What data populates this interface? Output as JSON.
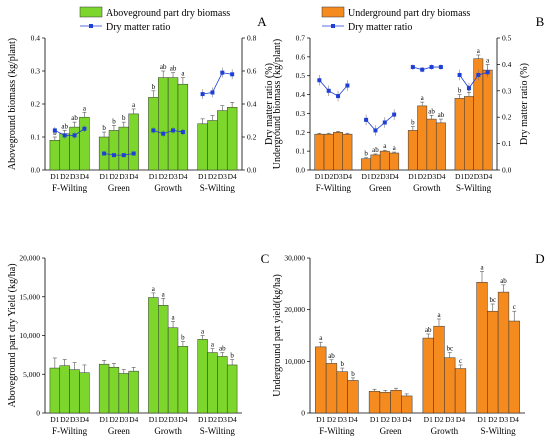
{
  "chart_data": [
    {
      "panel_label": "A",
      "type": "bar",
      "series": [
        {
          "name": "Aboveground part dry biomass",
          "kind": "bar",
          "axis": "left"
        },
        {
          "name": "Dry matter ratio",
          "kind": "line",
          "axis": "right"
        }
      ],
      "ylabel": "Aboveground biomass (kg/plant)",
      "ylabel_right": "Dry matter ratio (%)",
      "ylim": [
        0,
        0.4
      ],
      "yticks": [
        "0.0",
        "0.1",
        "0.2",
        "0.3",
        "0.4"
      ],
      "ylim_right": [
        0,
        0.8
      ],
      "yticks_right": [
        "0.0",
        "0.2",
        "0.4",
        "0.6",
        "0.8"
      ],
      "color": "#7CD62C",
      "line_color": "#1f3fd6",
      "groups": [
        {
          "name": "F-Wilting",
          "labels": [
            "D1",
            "D2",
            "D3",
            "D4"
          ],
          "values": [
            0.09,
            0.11,
            0.13,
            0.16
          ],
          "errors": [
            0.01,
            0.01,
            0.015,
            0.015
          ],
          "letters": [
            "b",
            "ab",
            "ab",
            "a"
          ],
          "ratio": [
            0.24,
            0.21,
            0.21,
            0.25
          ],
          "ratio_err": [
            0.02,
            0.02,
            0.02,
            0.02
          ]
        },
        {
          "name": "Green",
          "labels": [
            "D1",
            "D2",
            "D3",
            "D4"
          ],
          "values": [
            0.1,
            0.12,
            0.13,
            0.17
          ],
          "errors": [
            0.015,
            0.015,
            0.015,
            0.015
          ],
          "letters": [
            "b",
            "b",
            "b",
            "a"
          ],
          "ratio": [
            0.1,
            0.09,
            0.09,
            0.1
          ],
          "ratio_err": [
            0.01,
            0.01,
            0.01,
            0.01
          ]
        },
        {
          "name": "Growth",
          "labels": [
            "D1",
            "D2",
            "D3",
            "D4"
          ],
          "values": [
            0.22,
            0.28,
            0.28,
            0.26
          ],
          "errors": [
            0.02,
            0.02,
            0.015,
            0.02
          ],
          "letters": [
            "b",
            "ab",
            "ab",
            "a"
          ],
          "ratio": [
            0.24,
            0.22,
            0.24,
            0.23
          ],
          "ratio_err": [
            0.02,
            0.02,
            0.02,
            0.02
          ]
        },
        {
          "name": "S-Wilting",
          "labels": [
            "D1",
            "D2",
            "D3",
            "D4"
          ],
          "values": [
            0.14,
            0.15,
            0.18,
            0.19
          ],
          "errors": [
            0.015,
            0.015,
            0.015,
            0.015
          ],
          "letters": [
            "",
            "",
            "",
            ""
          ],
          "ratio": [
            0.46,
            0.47,
            0.59,
            0.58
          ],
          "ratio_err": [
            0.03,
            0.03,
            0.03,
            0.03
          ]
        }
      ]
    },
    {
      "panel_label": "B",
      "type": "bar",
      "series": [
        {
          "name": "Underground part dry biomass",
          "kind": "bar",
          "axis": "left"
        },
        {
          "name": "Dry matter ratio",
          "kind": "line",
          "axis": "right"
        }
      ],
      "ylabel": "Underground biomass (kg/plant)",
      "ylabel_right": "Dry matter ratio (%)",
      "ylim": [
        0,
        0.7
      ],
      "yticks": [
        "0.0",
        "0.1",
        "0.2",
        "0.3",
        "0.4",
        "0.5",
        "0.6",
        "0.7"
      ],
      "ylim_right": [
        0,
        0.5
      ],
      "yticks_right": [
        "0.0",
        "0.1",
        "0.2",
        "0.3",
        "0.4",
        "0.5"
      ],
      "color": "#F58A1F",
      "line_color": "#1f3fd6",
      "groups": [
        {
          "name": "F-Wilting",
          "labels": [
            "D1",
            "D2",
            "D3",
            "D4"
          ],
          "values": [
            0.19,
            0.19,
            0.2,
            0.19
          ],
          "errors": [
            0.005,
            0.005,
            0.005,
            0.005
          ],
          "letters": [
            "",
            "",
            "",
            ""
          ],
          "ratio": [
            0.34,
            0.3,
            0.28,
            0.32
          ],
          "ratio_err": [
            0.02,
            0.02,
            0.02,
            0.02
          ]
        },
        {
          "name": "Green",
          "labels": [
            "D1",
            "D2",
            "D3",
            "D4"
          ],
          "values": [
            0.06,
            0.08,
            0.1,
            0.09
          ],
          "errors": [
            0.005,
            0.005,
            0.005,
            0.005
          ],
          "letters": [
            "b",
            "ab",
            "a",
            "a"
          ],
          "ratio": [
            0.19,
            0.15,
            0.18,
            0.21
          ],
          "ratio_err": [
            0.02,
            0.02,
            0.02,
            0.02
          ]
        },
        {
          "name": "Growth",
          "labels": [
            "D1",
            "D2",
            "D3",
            "D4"
          ],
          "values": [
            0.21,
            0.34,
            0.27,
            0.25
          ],
          "errors": [
            0.02,
            0.02,
            0.02,
            0.02
          ],
          "letters": [
            "b",
            "a",
            "ab",
            "ab"
          ],
          "ratio": [
            0.39,
            0.38,
            0.39,
            0.39
          ],
          "ratio_err": [
            0.01,
            0.01,
            0.01,
            0.01
          ]
        },
        {
          "name": "S-Wilting",
          "labels": [
            "D1",
            "D2",
            "D3",
            "D4"
          ],
          "values": [
            0.38,
            0.39,
            0.59,
            0.53
          ],
          "errors": [
            0.02,
            0.02,
            0.02,
            0.03
          ],
          "letters": [
            "b",
            "b",
            "a",
            "a"
          ],
          "ratio": [
            0.36,
            0.31,
            0.36,
            0.37
          ],
          "ratio_err": [
            0.02,
            0.02,
            0.02,
            0.02
          ]
        }
      ]
    },
    {
      "panel_label": "C",
      "type": "bar",
      "ylabel": "Aboveground part dry Yield (kg/ha)",
      "ylim": [
        0,
        20000
      ],
      "yticks": [
        "0",
        "5,000",
        "10,000",
        "15,000",
        "20,000"
      ],
      "color": "#7CD62C",
      "groups": [
        {
          "name": "F-Wilting",
          "labels": [
            "D1",
            "D2",
            "D3",
            "D4"
          ],
          "values": [
            5800,
            6100,
            5600,
            5200
          ],
          "errors": [
            1300,
            800,
            900,
            1000
          ],
          "letters": [
            "",
            "",
            "",
            ""
          ]
        },
        {
          "name": "Green",
          "labels": [
            "D1",
            "D2",
            "D3",
            "D4"
          ],
          "values": [
            6300,
            5900,
            5100,
            5400
          ],
          "errors": [
            500,
            500,
            500,
            500
          ],
          "letters": [
            "",
            "",
            "",
            ""
          ]
        },
        {
          "name": "Growth",
          "labels": [
            "D1",
            "D2",
            "D3",
            "D4"
          ],
          "values": [
            14900,
            13900,
            11000,
            8600
          ],
          "errors": [
            600,
            900,
            800,
            600
          ],
          "letters": [
            "a",
            "a",
            "a",
            "b"
          ]
        },
        {
          "name": "S-Wilting",
          "labels": [
            "D1",
            "D2",
            "D3",
            "D4"
          ],
          "values": [
            9500,
            7800,
            7300,
            6200
          ],
          "errors": [
            500,
            500,
            500,
            700
          ],
          "letters": [
            "a",
            "a",
            "ab",
            "b"
          ]
        }
      ]
    },
    {
      "panel_label": "D",
      "type": "bar",
      "ylabel": "Underground part yield(kg/ha)",
      "ylim": [
        0,
        30000
      ],
      "yticks": [
        "0",
        "10,000",
        "20,000",
        "30,000"
      ],
      "color": "#F58A1F",
      "groups": [
        {
          "name": "F-Wilting",
          "labels": [
            "D1",
            "D2",
            "D3",
            "D4"
          ],
          "values": [
            12800,
            9600,
            8000,
            6300
          ],
          "errors": [
            900,
            700,
            700,
            500
          ],
          "letters": [
            "a",
            "ab",
            "b",
            "b"
          ]
        },
        {
          "name": "Green",
          "labels": [
            "D1",
            "D2",
            "D3",
            "D4"
          ],
          "values": [
            4200,
            4000,
            4400,
            3300
          ],
          "errors": [
            400,
            400,
            400,
            400
          ],
          "letters": [
            "",
            "",
            "",
            ""
          ]
        },
        {
          "name": "Growth",
          "labels": [
            "D1",
            "D2",
            "D3",
            "D4"
          ],
          "values": [
            14500,
            16800,
            10700,
            8600
          ],
          "errors": [
            800,
            1400,
            1000,
            700
          ],
          "letters": [
            "ab",
            "a",
            "bc",
            "c"
          ]
        },
        {
          "name": "S-Wilting",
          "labels": [
            "D1",
            "D2",
            "D3",
            "D4"
          ],
          "values": [
            25300,
            19700,
            23400,
            17800
          ],
          "errors": [
            2100,
            1400,
            1400,
            1900
          ],
          "letters": [
            "a",
            "bc",
            "ab",
            "c"
          ]
        }
      ]
    }
  ]
}
